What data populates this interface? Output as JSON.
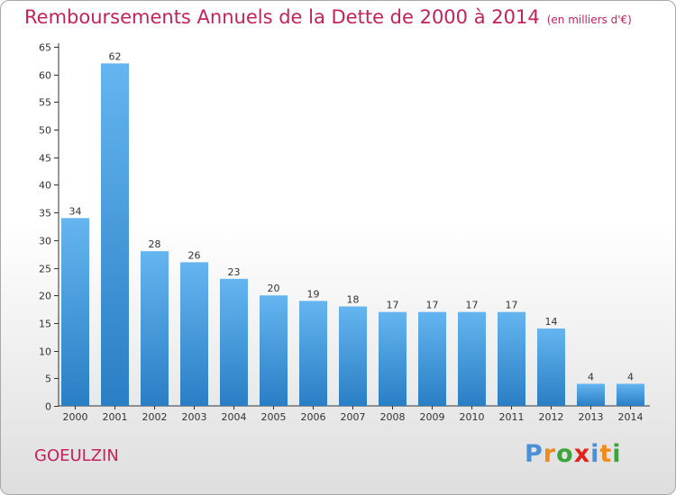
{
  "title": "Remboursements Annuels de la Dette de 2000 à 2014",
  "subtitle": "(en milliers d'€)",
  "location": "GOEULZIN",
  "logo": {
    "text": "Proxiti",
    "colors": [
      "#4a90d9",
      "#f08a1c",
      "#3aa63a",
      "#e2231a",
      "#4a90d9",
      "#f08a1c",
      "#3aa63a"
    ]
  },
  "colors": {
    "title": "#c4225c",
    "bar_top": "#64b5f0",
    "bar_bottom": "#2a7ec4",
    "axis": "#333333"
  },
  "chart_data": {
    "type": "bar",
    "title": "Remboursements Annuels de la Dette de 2000 à 2014",
    "subtitle": "(en milliers d'€)",
    "categories": [
      "2000",
      "2001",
      "2002",
      "2003",
      "2004",
      "2005",
      "2006",
      "2007",
      "2008",
      "2009",
      "2010",
      "2011",
      "2012",
      "2013",
      "2014"
    ],
    "values": [
      34,
      62,
      28,
      26,
      23,
      20,
      19,
      18,
      17,
      17,
      17,
      17,
      14,
      4,
      4
    ],
    "ylim": [
      0,
      65
    ],
    "yticks": [
      0,
      5,
      10,
      15,
      20,
      25,
      30,
      35,
      40,
      45,
      50,
      55,
      60,
      65
    ],
    "grid": false,
    "xlabel": "",
    "ylabel": ""
  }
}
